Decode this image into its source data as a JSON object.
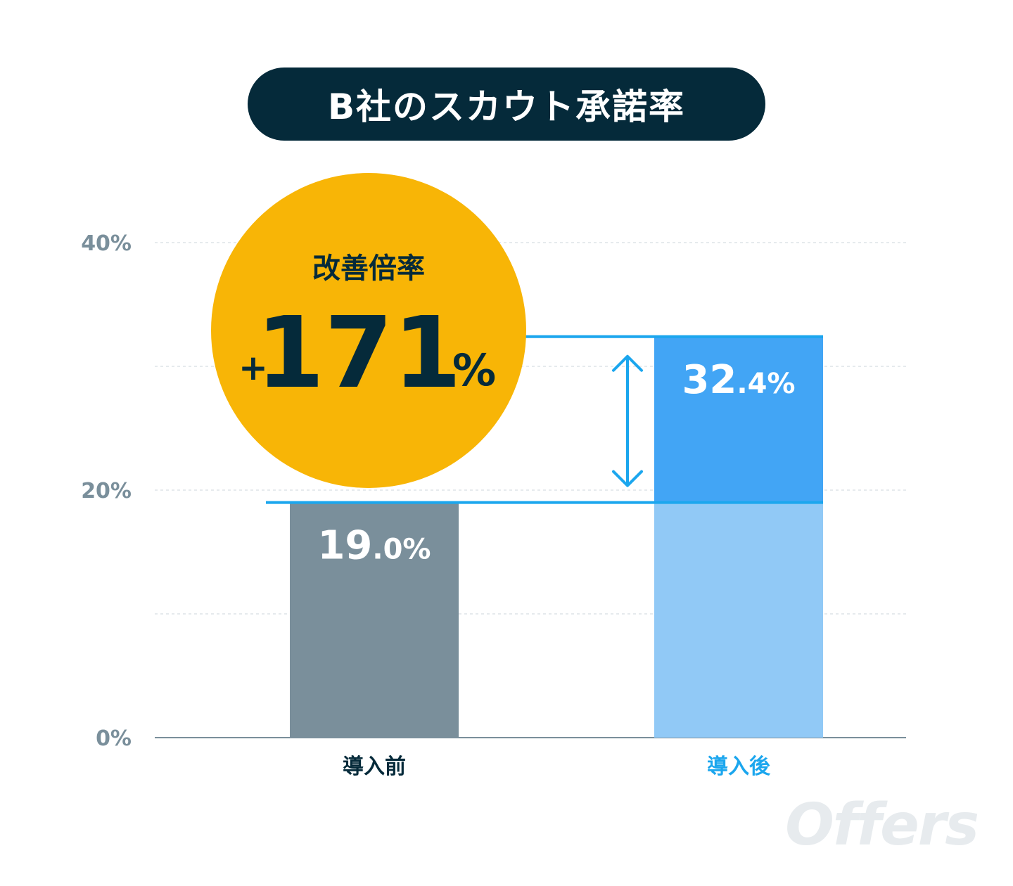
{
  "title": "B社のスカウト承諾率",
  "logo": "Offers",
  "badge": {
    "caption": "改善倍率",
    "sign": "+",
    "value": "171",
    "unit": "%",
    "color": "#f8b506"
  },
  "colors": {
    "before_bar": "#7a8f9b",
    "after_bar_base": "#91c9f6",
    "after_bar_increase": "#42a5f5",
    "guide_line": "#1ba6ee",
    "before_label": "#052a3a",
    "after_label": "#1ba6ee"
  },
  "chart_data": {
    "type": "bar",
    "title": "B社のスカウト承諾率",
    "categories": [
      "導入前",
      "導入後"
    ],
    "values": [
      19.0,
      32.4
    ],
    "value_labels": [
      {
        "int": "19",
        "dec": ".0%"
      },
      {
        "int": "32",
        "dec": ".4%"
      }
    ],
    "ylim": [
      0,
      40
    ],
    "y_ticks": [
      0,
      10,
      20,
      30,
      40
    ],
    "y_tick_labels": [
      "0%",
      "",
      "20%",
      "",
      "40%"
    ],
    "grid": true,
    "xlabel": "",
    "ylabel": ""
  }
}
